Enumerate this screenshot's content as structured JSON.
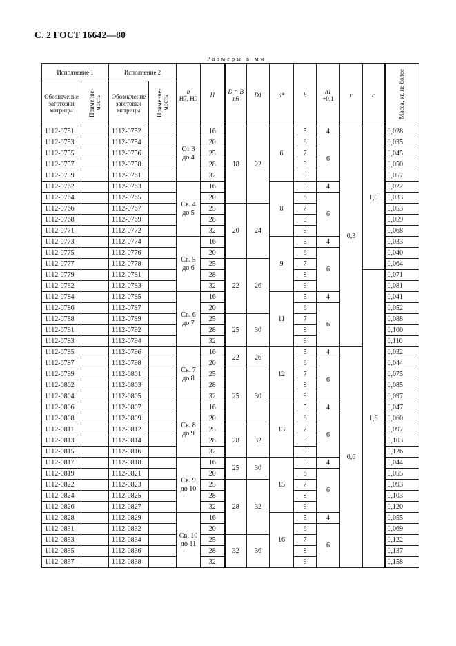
{
  "page_title": "С. 2 ГОСТ 16642—80",
  "units_note": "Размеры в мм",
  "header": {
    "variant1": "Исполнение 1",
    "variant2": "Исполнение 2",
    "designation": "Обозначение заготовки матрицы",
    "applicability": "Применяе- мость",
    "b": "b",
    "b_tol": "H7, H9",
    "H": "H",
    "D": "D = B",
    "D_tol": "n6",
    "D1": "D1",
    "d": "d*",
    "h": "h",
    "h1": "h1",
    "h1_tol": "+0,1",
    "r": "r",
    "c": "c",
    "mass": "Масса, кг, не более"
  },
  "rows": [
    {
      "code1": "1112-0751",
      "code2": "1112-0752",
      "H": "16",
      "h": "5",
      "mass": "0,028"
    },
    {
      "code1": "1112-0753",
      "code2": "1112-0754",
      "H": "20",
      "h": "6",
      "mass": "0,035"
    },
    {
      "code1": "1112-0755",
      "code2": "1112-0756",
      "H": "25",
      "h": "7",
      "mass": "0,045"
    },
    {
      "code1": "1112-0757",
      "code2": "1112-0758",
      "H": "28",
      "h": "8",
      "mass": "0,050"
    },
    {
      "code1": "1112-0759",
      "code2": "1112-0761",
      "H": "32",
      "h": "9",
      "mass": "0,057"
    },
    {
      "code1": "1112-0762",
      "code2": "1112-0763",
      "H": "16",
      "h": "5",
      "mass": "0,022"
    },
    {
      "code1": "1112-0764",
      "code2": "1112-0765",
      "H": "20",
      "h": "6",
      "mass": "0,033"
    },
    {
      "code1": "1112-0766",
      "code2": "1112-0767",
      "H": "25",
      "h": "7",
      "mass": "0,053"
    },
    {
      "code1": "1112-0768",
      "code2": "1112-0769",
      "H": "28",
      "h": "8",
      "mass": "0,059"
    },
    {
      "code1": "1112-0771",
      "code2": "1112-0772",
      "H": "32",
      "h": "9",
      "mass": "0,068"
    },
    {
      "code1": "1112-0773",
      "code2": "1112-0774",
      "H": "16",
      "h": "5",
      "mass": "0,033"
    },
    {
      "code1": "1112-0775",
      "code2": "1112-0776",
      "H": "20",
      "h": "6",
      "mass": "0,040"
    },
    {
      "code1": "1112-0777",
      "code2": "1112-0778",
      "H": "25",
      "h": "7",
      "mass": "0,064"
    },
    {
      "code1": "1112-0779",
      "code2": "1112-0781",
      "H": "28",
      "h": "8",
      "mass": "0,071"
    },
    {
      "code1": "1112-0782",
      "code2": "1112-0783",
      "H": "32",
      "h": "9",
      "mass": "0,081"
    },
    {
      "code1": "1112-0784",
      "code2": "1112-0785",
      "H": "16",
      "h": "5",
      "mass": "0,041"
    },
    {
      "code1": "1112-0786",
      "code2": "1112-0787",
      "H": "20",
      "h": "6",
      "mass": "0,052"
    },
    {
      "code1": "1112-0788",
      "code2": "1112-0789",
      "H": "25",
      "h": "7",
      "mass": "0,088"
    },
    {
      "code1": "1112-0791",
      "code2": "1112-0792",
      "H": "28",
      "h": "8",
      "mass": "0,100"
    },
    {
      "code1": "1112-0793",
      "code2": "1112-0794",
      "H": "32",
      "h": "9",
      "mass": "0,110"
    },
    {
      "code1": "1112-0795",
      "code2": "1112-0796",
      "H": "16",
      "h": "5",
      "mass": "0,032"
    },
    {
      "code1": "1112-0797",
      "code2": "1112-0798",
      "H": "20",
      "h": "6",
      "mass": "0,044"
    },
    {
      "code1": "1112-0799",
      "code2": "1112-0801",
      "H": "25",
      "h": "7",
      "mass": "0,075"
    },
    {
      "code1": "1112-0802",
      "code2": "1112-0803",
      "H": "28",
      "h": "8",
      "mass": "0,085"
    },
    {
      "code1": "1112-0804",
      "code2": "1112-0805",
      "H": "32",
      "h": "9",
      "mass": "0,097"
    },
    {
      "code1": "1112-0806",
      "code2": "1112-0807",
      "H": "16",
      "h": "5",
      "mass": "0,047"
    },
    {
      "code1": "1112-0808",
      "code2": "1112-0809",
      "H": "20",
      "h": "6",
      "mass": "0,060"
    },
    {
      "code1": "1112-0811",
      "code2": "1112-0812",
      "H": "25",
      "h": "7",
      "mass": "0,097"
    },
    {
      "code1": "1112-0813",
      "code2": "1112-0814",
      "H": "28",
      "h": "8",
      "mass": "0,103"
    },
    {
      "code1": "1112-0815",
      "code2": "1112-0816",
      "H": "32",
      "h": "9",
      "mass": "0,126"
    },
    {
      "code1": "1112-0817",
      "code2": "1112-0818",
      "H": "16",
      "h": "5",
      "mass": "0,044"
    },
    {
      "code1": "1112-0819",
      "code2": "1112-0821",
      "H": "20",
      "h": "6",
      "mass": "0,055"
    },
    {
      "code1": "1112-0822",
      "code2": "1112-0823",
      "H": "25",
      "h": "7",
      "mass": "0,093"
    },
    {
      "code1": "1112-0824",
      "code2": "1112-0825",
      "H": "28",
      "h": "8",
      "mass": "0,103"
    },
    {
      "code1": "1112-0826",
      "code2": "1112-0827",
      "H": "32",
      "h": "9",
      "mass": "0,120"
    },
    {
      "code1": "1112-0828",
      "code2": "1112-0829",
      "H": "16",
      "h": "5",
      "mass": "0,055"
    },
    {
      "code1": "1112-0831",
      "code2": "1112-0832",
      "H": "20",
      "h": "6",
      "mass": "0,069"
    },
    {
      "code1": "1112-0833",
      "code2": "1112-0834",
      "H": "25",
      "h": "7",
      "mass": "0,122"
    },
    {
      "code1": "1112-0835",
      "code2": "1112-0836",
      "H": "28",
      "h": "8",
      "mass": "0,137"
    },
    {
      "code1": "1112-0837",
      "code2": "1112-0838",
      "H": "32",
      "h": "9",
      "mass": "0,158"
    }
  ],
  "b_groups": [
    {
      "line1": "От 3",
      "line2": "до 4",
      "span": 5
    },
    {
      "line1": "Св. 4",
      "line2": "до 5",
      "span": 5
    },
    {
      "line1": "Св. 5",
      "line2": "до 6",
      "span": 5
    },
    {
      "line1": "Св. 6",
      "line2": "до 7",
      "span": 5
    },
    {
      "line1": "Св. 7",
      "line2": "до 8",
      "span": 5
    },
    {
      "line1": "Св. 8",
      "line2": "до 9",
      "span": 5
    },
    {
      "line1": "Св. 9",
      "line2": "до 10",
      "span": 5
    },
    {
      "line1": "Св. 10",
      "line2": "до 11",
      "span": 5
    }
  ],
  "d_groups": [
    {
      "value": "6",
      "span": 5
    },
    {
      "value": "8",
      "span": 5
    },
    {
      "value": "9",
      "span": 5
    },
    {
      "value": "11",
      "span": 5
    },
    {
      "value": "12",
      "span": 5
    },
    {
      "value": "13",
      "span": 5
    },
    {
      "value": "15",
      "span": 5
    },
    {
      "value": "16",
      "span": 5
    }
  ],
  "h1_groups": [
    {
      "first": "4",
      "rest": "6"
    }
  ],
  "D_groups": [
    {
      "D": "18",
      "D1": "22",
      "span": 7
    },
    {
      "D": "20",
      "D1": "24",
      "span": 5
    },
    {
      "D": "22",
      "D1": "26",
      "span": 5
    },
    {
      "D": "25",
      "D1": "30",
      "span": 3
    },
    {
      "D": "22",
      "D1": "26",
      "span": 2
    },
    {
      "D": "25",
      "D1": "30",
      "span": 5
    },
    {
      "D": "28",
      "D1": "32",
      "span": 3
    },
    {
      "D": "25",
      "D1": "30",
      "span": 2
    },
    {
      "D": "28",
      "D1": "32",
      "span": 5
    },
    {
      "D": "32",
      "D1": "36",
      "span": 3
    }
  ],
  "r_groups": [
    {
      "value": "0,3",
      "span": 20
    },
    {
      "value": "0,6",
      "span": 20
    }
  ],
  "c_groups": [
    {
      "value": "1,0",
      "span": 13
    },
    {
      "value": "1,6",
      "span": 27
    }
  ]
}
